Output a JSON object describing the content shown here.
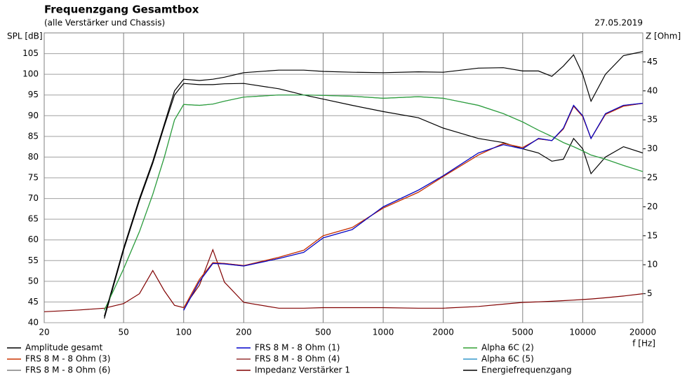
{
  "chart_data": {
    "type": "line",
    "title": "Frequenzgang Gesamtbox",
    "subtitle": "(alle Verstärker und Chassis)",
    "date": "27.05.2019",
    "y_label": "SPL [dB]",
    "y2_label": "Z [Ohm]",
    "x_label": "f [Hz]",
    "x_scale": "log",
    "grid": true,
    "x": [
      20,
      30,
      40,
      50,
      60,
      70,
      80,
      90,
      100,
      120,
      140,
      160,
      200,
      300,
      400,
      500,
      700,
      1000,
      1500,
      2000,
      3000,
      4000,
      5000,
      6000,
      7000,
      8000,
      9000,
      10000,
      11000,
      13000,
      16000,
      20000
    ],
    "xlim": [
      20,
      20000
    ],
    "xticks": [
      20,
      50,
      100,
      200,
      500,
      1000,
      2000,
      5000,
      10000,
      20000
    ],
    "ylim": [
      40,
      110
    ],
    "yticks": [
      40,
      45,
      50,
      55,
      60,
      65,
      70,
      75,
      80,
      85,
      90,
      95,
      100,
      105
    ],
    "y2lim": [
      0,
      50
    ],
    "y2ticks": [
      5,
      10,
      15,
      20,
      25,
      30,
      35,
      40,
      45
    ],
    "series": [
      {
        "name": "Amplitude gesamt",
        "color": "#000000",
        "values": [
          null,
          null,
          41.5,
          58,
          70,
          79,
          88,
          96,
          98.8,
          98.5,
          98.8,
          99.3,
          100.4,
          101,
          101,
          100.7,
          100.5,
          100.4,
          100.6,
          100.5,
          101.5,
          101.6,
          100.8,
          100.8,
          99.5,
          102,
          104.7,
          100,
          93.5,
          100,
          104.5,
          105.5
        ]
      },
      {
        "name": "FRS 8 M - 8 Ohm (1)",
        "color": "#0000cc",
        "values": [
          null,
          null,
          null,
          null,
          null,
          null,
          null,
          null,
          43,
          50,
          54.3,
          54.2,
          53.7,
          55.5,
          57,
          60.5,
          62.5,
          68,
          72,
          75.5,
          81,
          83,
          82,
          84.5,
          84,
          87,
          92.5,
          90,
          84.5,
          90.5,
          92.5,
          93
        ]
      },
      {
        "name": "Alpha 6C (2)",
        "color": "#33a033",
        "values": [
          null,
          null,
          43,
          53,
          62,
          71,
          80,
          89,
          92.7,
          92.5,
          92.8,
          93.5,
          94.5,
          95,
          95,
          94.9,
          94.7,
          94.2,
          94.6,
          94.2,
          92.5,
          90.5,
          88.5,
          86.5,
          85,
          83.5,
          82.5,
          81.5,
          80.5,
          79.5,
          78,
          76.5
        ]
      },
      {
        "name": "FRS 8 M - 8 Ohm (3)",
        "color": "#cc3300",
        "values": [
          null,
          null,
          null,
          null,
          null,
          null,
          null,
          null,
          43.5,
          50.5,
          54.5,
          54.3,
          53.8,
          55.8,
          57.5,
          61,
          63,
          67.7,
          71.5,
          75.3,
          80.5,
          83.3,
          82.3,
          84.4,
          84,
          86.8,
          92.3,
          89.8,
          84.5,
          90.3,
          92.3,
          93
        ]
      },
      {
        "name": "FRS 8 M - 8 Ohm (4)",
        "color": "#993333",
        "values": [
          null,
          null,
          null,
          null,
          null,
          null,
          null,
          null,
          43.5,
          50.5,
          54.5,
          54.3,
          53.8,
          55.8,
          57.5,
          61,
          63,
          67.7,
          71.5,
          75.3,
          80.5,
          83.3,
          82.3,
          84.4,
          84,
          86.8,
          92.3,
          89.8,
          84.5,
          90.3,
          92.3,
          93
        ]
      },
      {
        "name": "Alpha 6C (5)",
        "color": "#3399cc",
        "values": [
          null,
          null,
          43,
          53,
          62,
          71,
          80,
          89,
          92.7,
          92.5,
          92.8,
          93.5,
          94.5,
          95,
          95,
          94.9,
          94.7,
          94.2,
          94.6,
          94.2,
          92.5,
          90.5,
          88.5,
          86.5,
          85,
          83.5,
          82.5,
          81.5,
          80.5,
          79.5,
          78,
          76.5
        ]
      },
      {
        "name": "FRS 8 M - 8 Ohm (6)",
        "color": "#808080",
        "values": [
          null,
          null,
          null,
          null,
          null,
          null,
          null,
          null,
          43,
          50,
          54.3,
          54.2,
          53.7,
          55.5,
          57,
          60.5,
          62.5,
          68,
          72,
          75.5,
          81,
          83,
          82,
          84.5,
          84,
          87,
          92.5,
          90,
          84.5,
          90.5,
          92.5,
          93
        ]
      },
      {
        "name": "Impedanz Verstärker 1",
        "color": "#800000",
        "axis": "y2",
        "values": [
          1.9,
          2.2,
          2.5,
          3.3,
          5,
          9,
          5.5,
          3,
          2.6,
          6.5,
          12.6,
          7,
          3.5,
          2.5,
          2.5,
          2.6,
          2.6,
          2.6,
          2.5,
          2.5,
          2.8,
          3.2,
          3.5,
          3.6,
          3.7,
          3.8,
          3.9,
          4,
          4.1,
          4.3,
          4.6,
          5
        ]
      },
      {
        "name": "Energiefrequenzgang",
        "color": "#000000",
        "values": [
          null,
          null,
          41,
          57.5,
          69.5,
          78.5,
          87.5,
          95,
          97.8,
          97.5,
          97.5,
          97.7,
          97.8,
          96.5,
          95,
          94,
          92.5,
          91,
          89.5,
          87,
          84.5,
          83.5,
          82,
          81,
          79,
          79.5,
          84.5,
          82,
          76,
          80,
          82.5,
          81
        ]
      }
    ]
  }
}
